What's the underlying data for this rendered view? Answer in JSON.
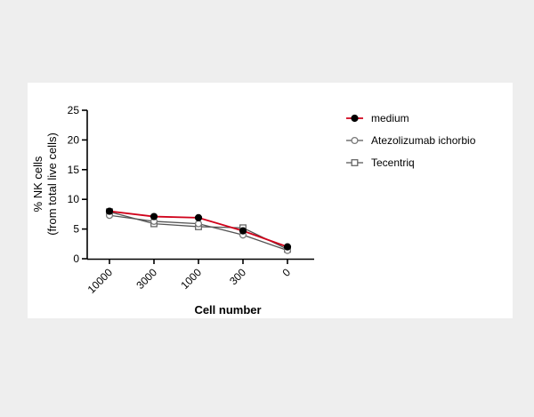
{
  "chart_data": {
    "type": "line",
    "title": "",
    "xlabel": "Cell number",
    "ylabel_line1": "% NK cells",
    "ylabel_line2": "(from total live cells)",
    "categories": [
      "10000",
      "3000",
      "1000",
      "300",
      "0"
    ],
    "ylim": [
      0,
      25
    ],
    "yticks": [
      0,
      5,
      10,
      15,
      20,
      25
    ],
    "grid": false,
    "legend_position": "right",
    "series": [
      {
        "name": "medium",
        "values": [
          8.0,
          7.1,
          6.9,
          4.7,
          2.0
        ],
        "color": "#d0021b",
        "marker": "filled-circle",
        "marker_color": "#000000"
      },
      {
        "name": "Atezolizumab ichorbio",
        "values": [
          7.3,
          6.3,
          5.9,
          4.0,
          1.4
        ],
        "color": "#555555",
        "marker": "open-circle",
        "marker_color": "#777777"
      },
      {
        "name": "Tecentriq",
        "values": [
          7.9,
          5.9,
          5.4,
          5.2,
          1.6
        ],
        "color": "#555555",
        "marker": "open-square",
        "marker_color": "#666666"
      }
    ]
  }
}
